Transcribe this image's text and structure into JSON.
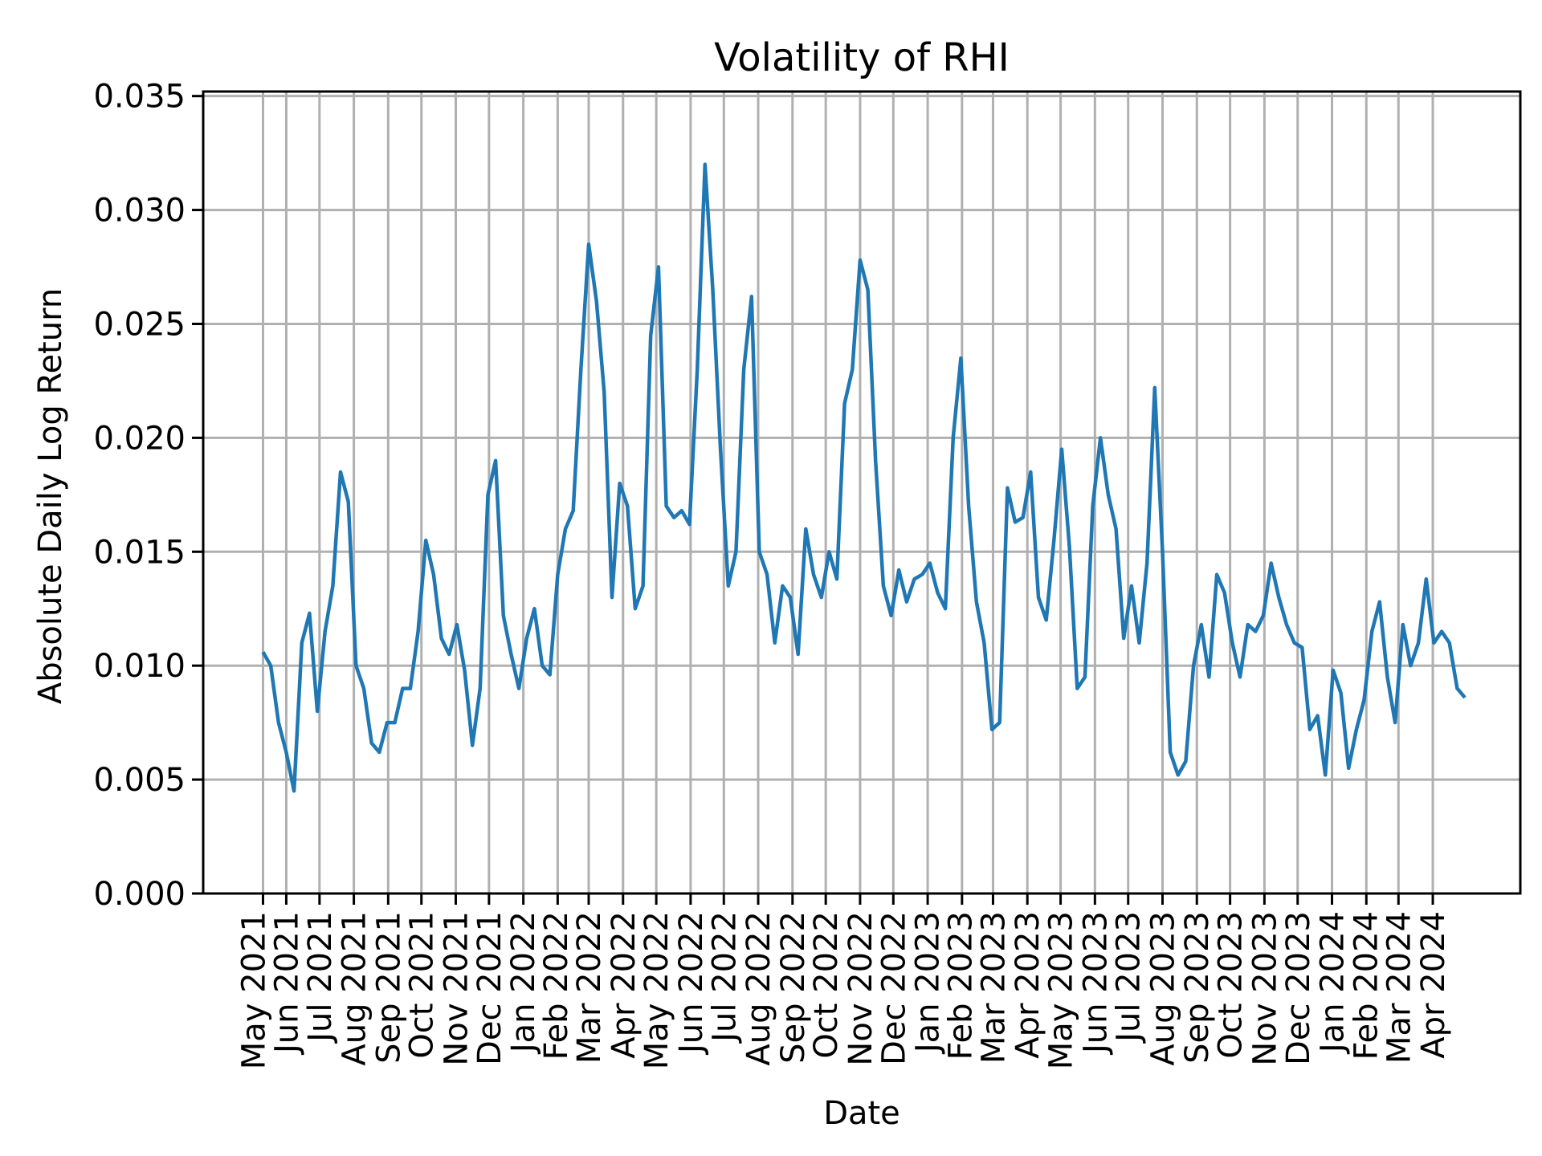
{
  "chart_data": {
    "type": "line",
    "title": "Volatility of RHI",
    "xlabel": "Date",
    "ylabel": "Absolute Daily Log Return",
    "grid": true,
    "legend": "none",
    "line_color": "#1f77b4",
    "grid_color": "#b0b0b0",
    "xlim": [
      "2021-03-18",
      "2024-06-19"
    ],
    "ylim": [
      0,
      0.0352
    ],
    "yticks": [
      0,
      0.005,
      0.01,
      0.015,
      0.02,
      0.025,
      0.03,
      0.035
    ],
    "ytick_labels": [
      "0.000",
      "0.005",
      "0.010",
      "0.015",
      "0.020",
      "0.025",
      "0.030",
      "0.035"
    ],
    "xticks": [
      "2021-05-11",
      "2021-06-01",
      "2021-07-01",
      "2021-08-01",
      "2021-09-01",
      "2021-10-01",
      "2021-11-01",
      "2021-12-01",
      "2022-01-01",
      "2022-02-01",
      "2022-03-01",
      "2022-04-01",
      "2022-05-01",
      "2022-06-01",
      "2022-07-01",
      "2022-08-01",
      "2022-09-01",
      "2022-10-01",
      "2022-11-01",
      "2022-12-01",
      "2023-01-01",
      "2023-02-01",
      "2023-03-01",
      "2023-04-01",
      "2023-05-01",
      "2023-06-01",
      "2023-07-01",
      "2023-08-01",
      "2023-09-01",
      "2023-10-01",
      "2023-11-01",
      "2023-12-01",
      "2024-01-01",
      "2024-02-01",
      "2024-03-01",
      "2024-04-01"
    ],
    "xtick_labels": [
      "May 2021",
      "Jun 2021",
      "Jul 2021",
      "Aug 2021",
      "Sep 2021",
      "Oct 2021",
      "Nov 2021",
      "Dec 2021",
      "Jan 2022",
      "Feb 2022",
      "Mar 2022",
      "Apr 2022",
      "May 2022",
      "Jun 2022",
      "Jul 2022",
      "Aug 2022",
      "Sep 2022",
      "Oct 2022",
      "Nov 2022",
      "Dec 2022",
      "Jan 2023",
      "Feb 2023",
      "Mar 2023",
      "Apr 2023",
      "May 2023",
      "Jun 2023",
      "Jul 2023",
      "Aug 2023",
      "Sep 2023",
      "Oct 2023",
      "Nov 2023",
      "Dec 2023",
      "Jan 2024",
      "Feb 2024",
      "Mar 2024",
      "Apr 2024"
    ],
    "x": [
      "2021-05-11",
      "2021-05-18",
      "2021-05-25",
      "2021-06-01",
      "2021-06-08",
      "2021-06-15",
      "2021-06-22",
      "2021-06-29",
      "2021-07-06",
      "2021-07-13",
      "2021-07-20",
      "2021-07-27",
      "2021-08-03",
      "2021-08-10",
      "2021-08-17",
      "2021-08-24",
      "2021-08-31",
      "2021-09-07",
      "2021-09-14",
      "2021-09-21",
      "2021-09-28",
      "2021-10-05",
      "2021-10-12",
      "2021-10-19",
      "2021-10-26",
      "2021-11-02",
      "2021-11-09",
      "2021-11-16",
      "2021-11-23",
      "2021-11-30",
      "2021-12-07",
      "2021-12-14",
      "2021-12-21",
      "2021-12-28",
      "2022-01-04",
      "2022-01-11",
      "2022-01-18",
      "2022-01-25",
      "2022-02-01",
      "2022-02-08",
      "2022-02-15",
      "2022-02-22",
      "2022-03-01",
      "2022-03-08",
      "2022-03-15",
      "2022-03-22",
      "2022-03-29",
      "2022-04-05",
      "2022-04-12",
      "2022-04-19",
      "2022-04-26",
      "2022-05-03",
      "2022-05-10",
      "2022-05-17",
      "2022-05-24",
      "2022-05-31",
      "2022-06-07",
      "2022-06-14",
      "2022-06-21",
      "2022-06-28",
      "2022-07-05",
      "2022-07-12",
      "2022-07-19",
      "2022-07-26",
      "2022-08-02",
      "2022-08-09",
      "2022-08-16",
      "2022-08-23",
      "2022-08-30",
      "2022-09-06",
      "2022-09-13",
      "2022-09-20",
      "2022-09-27",
      "2022-10-04",
      "2022-10-11",
      "2022-10-18",
      "2022-10-25",
      "2022-11-01",
      "2022-11-08",
      "2022-11-15",
      "2022-11-22",
      "2022-11-29",
      "2022-12-06",
      "2022-12-13",
      "2022-12-20",
      "2022-12-27",
      "2023-01-03",
      "2023-01-10",
      "2023-01-17",
      "2023-01-24",
      "2023-01-31",
      "2023-02-07",
      "2023-02-14",
      "2023-02-21",
      "2023-02-28",
      "2023-03-07",
      "2023-03-14",
      "2023-03-21",
      "2023-03-28",
      "2023-04-04",
      "2023-04-11",
      "2023-04-18",
      "2023-04-25",
      "2023-05-02",
      "2023-05-09",
      "2023-05-16",
      "2023-05-23",
      "2023-05-30",
      "2023-06-06",
      "2023-06-13",
      "2023-06-20",
      "2023-06-27",
      "2023-07-04",
      "2023-07-11",
      "2023-07-18",
      "2023-07-25",
      "2023-08-01",
      "2023-08-08",
      "2023-08-15",
      "2023-08-22",
      "2023-08-29",
      "2023-09-05",
      "2023-09-12",
      "2023-09-19",
      "2023-09-26",
      "2023-10-03",
      "2023-10-10",
      "2023-10-17",
      "2023-10-24",
      "2023-10-31",
      "2023-11-07",
      "2023-11-14",
      "2023-11-21",
      "2023-11-28",
      "2023-12-05",
      "2023-12-12",
      "2023-12-19",
      "2023-12-26",
      "2024-01-02",
      "2024-01-09",
      "2024-01-16",
      "2024-01-23",
      "2024-01-30",
      "2024-02-06",
      "2024-02-13",
      "2024-02-20",
      "2024-02-27",
      "2024-03-05",
      "2024-03-12",
      "2024-03-19",
      "2024-03-26",
      "2024-04-02",
      "2024-04-09",
      "2024-04-16",
      "2024-04-23",
      "2024-04-30"
    ],
    "y": [
      0.0106,
      0.01,
      0.0075,
      0.0062,
      0.0045,
      0.011,
      0.0123,
      0.008,
      0.0115,
      0.0135,
      0.0185,
      0.0172,
      0.01,
      0.009,
      0.0066,
      0.0062,
      0.0075,
      0.0075,
      0.009,
      0.009,
      0.0115,
      0.0155,
      0.014,
      0.0112,
      0.0105,
      0.0118,
      0.0098,
      0.0065,
      0.009,
      0.0175,
      0.019,
      0.0122,
      0.0105,
      0.009,
      0.0112,
      0.0125,
      0.01,
      0.0096,
      0.014,
      0.016,
      0.0168,
      0.023,
      0.0285,
      0.026,
      0.022,
      0.013,
      0.018,
      0.017,
      0.0125,
      0.0135,
      0.0245,
      0.0275,
      0.017,
      0.0165,
      0.0168,
      0.0162,
      0.023,
      0.032,
      0.0265,
      0.0195,
      0.0135,
      0.015,
      0.023,
      0.0262,
      0.015,
      0.014,
      0.011,
      0.0135,
      0.013,
      0.0105,
      0.016,
      0.014,
      0.013,
      0.015,
      0.0138,
      0.0215,
      0.023,
      0.0278,
      0.0265,
      0.019,
      0.0135,
      0.0122,
      0.0142,
      0.0128,
      0.0138,
      0.014,
      0.0145,
      0.0132,
      0.0125,
      0.02,
      0.0235,
      0.017,
      0.0128,
      0.011,
      0.0072,
      0.0075,
      0.0178,
      0.0163,
      0.0165,
      0.0185,
      0.013,
      0.012,
      0.0155,
      0.0195,
      0.0152,
      0.009,
      0.0095,
      0.017,
      0.02,
      0.0175,
      0.016,
      0.0112,
      0.0135,
      0.011,
      0.0145,
      0.0222,
      0.015,
      0.0062,
      0.0052,
      0.0058,
      0.01,
      0.0118,
      0.0095,
      0.014,
      0.0132,
      0.011,
      0.0095,
      0.0118,
      0.0115,
      0.0122,
      0.0145,
      0.013,
      0.0118,
      0.011,
      0.0108,
      0.0072,
      0.0078,
      0.0052,
      0.0098,
      0.0088,
      0.0055,
      0.0072,
      0.0085,
      0.0115,
      0.0128,
      0.0095,
      0.0075,
      0.0118,
      0.01,
      0.011,
      0.0138,
      0.011,
      0.0115,
      0.011,
      0.009,
      0.0086
    ]
  }
}
